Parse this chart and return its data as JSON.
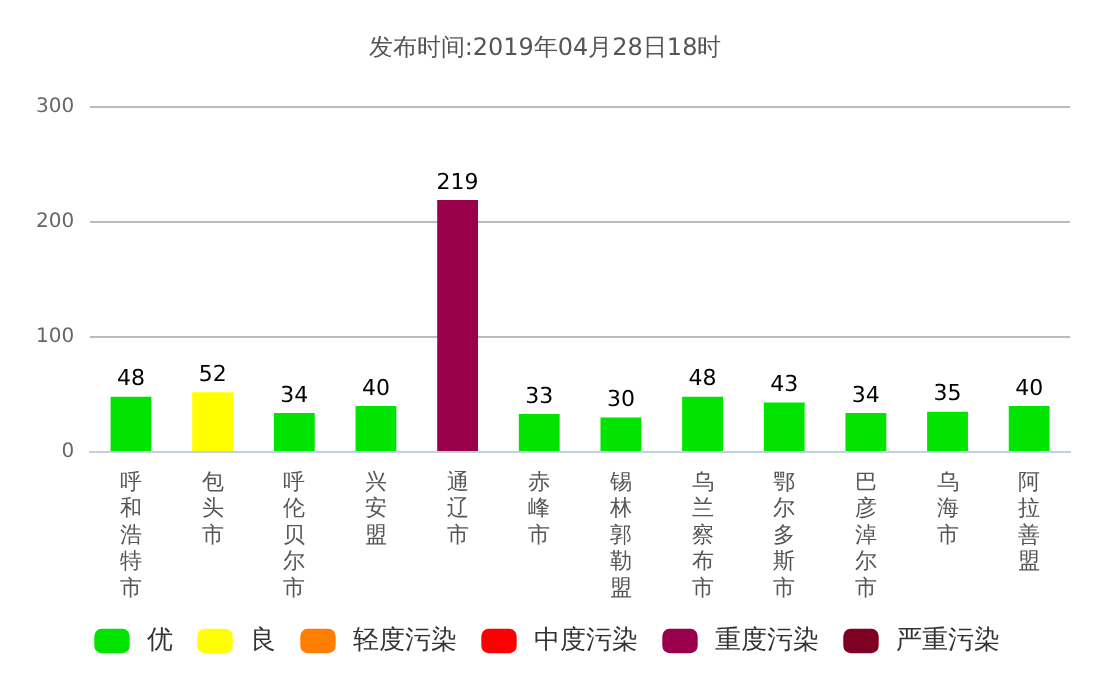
{
  "chart_data": {
    "type": "bar",
    "title": "发布时间:2019年04月28日18时",
    "categories": [
      "呼和浩特市",
      "包头市",
      "呼伦贝尔市",
      "兴安盟",
      "通辽市",
      "赤峰市",
      "锡林郭勒盟",
      "乌兰察布市",
      "鄂尔多斯市",
      "巴彦淖尔市",
      "乌海市",
      "阿拉善盟"
    ],
    "stacked": true,
    "series": [
      {
        "name": "优",
        "color": "#00e400",
        "values": [
          48,
          null,
          34,
          40,
          null,
          33,
          30,
          48,
          43,
          34,
          35,
          40
        ]
      },
      {
        "name": "良",
        "color": "#ffff00",
        "values": [
          null,
          52,
          null,
          null,
          null,
          null,
          null,
          null,
          null,
          null,
          null,
          null
        ]
      },
      {
        "name": "轻度污染",
        "color": "#ff7e00",
        "values": [
          null,
          null,
          null,
          null,
          null,
          null,
          null,
          null,
          null,
          null,
          null,
          null
        ]
      },
      {
        "name": "中度污染",
        "color": "#ff0000",
        "values": [
          null,
          null,
          null,
          null,
          null,
          null,
          null,
          null,
          null,
          null,
          null,
          null
        ]
      },
      {
        "name": "重度污染",
        "color": "#99004c",
        "values": [
          null,
          null,
          null,
          null,
          219,
          null,
          null,
          null,
          null,
          null,
          null,
          null
        ]
      },
      {
        "name": "严重污染",
        "color": "#7e0023",
        "values": [
          null,
          null,
          null,
          null,
          null,
          null,
          null,
          null,
          null,
          null,
          null,
          null
        ]
      }
    ],
    "ylim": [
      0,
      300
    ],
    "yticks": [
      0,
      100,
      200,
      300
    ],
    "grid": "y",
    "legend": "bottom",
    "data_labels": true
  }
}
